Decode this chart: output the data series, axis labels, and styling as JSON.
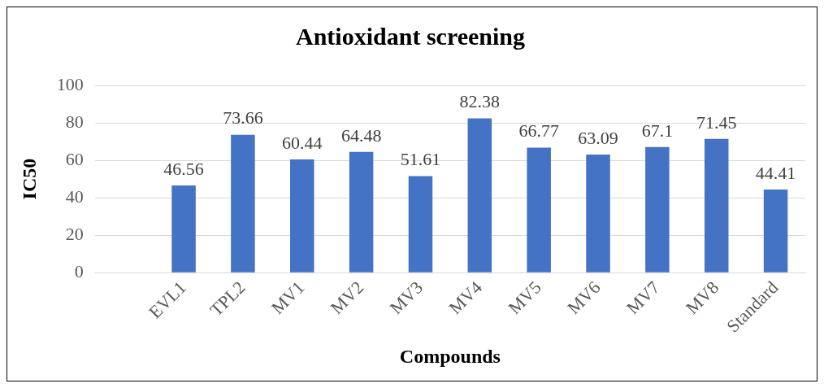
{
  "chart_data": {
    "type": "bar",
    "title": "Antioxidant screening",
    "xlabel": "Compounds",
    "ylabel": "IC50",
    "categories": [
      null,
      "EVL1",
      "TPL2",
      "MV1",
      "MV2",
      "MV3",
      "MV4",
      "MV5",
      "MV6",
      "MV7",
      "MV8",
      "Standard"
    ],
    "values": [
      null,
      46.56,
      73.66,
      60.44,
      64.48,
      51.61,
      82.38,
      66.77,
      63.09,
      67.1,
      71.45,
      44.41
    ],
    "color": "#4472c4",
    "ylim": [
      0,
      100
    ],
    "yticks": [
      0,
      20,
      40,
      60,
      80,
      100
    ],
    "grid": "y",
    "legend": false,
    "data_labels": true
  }
}
